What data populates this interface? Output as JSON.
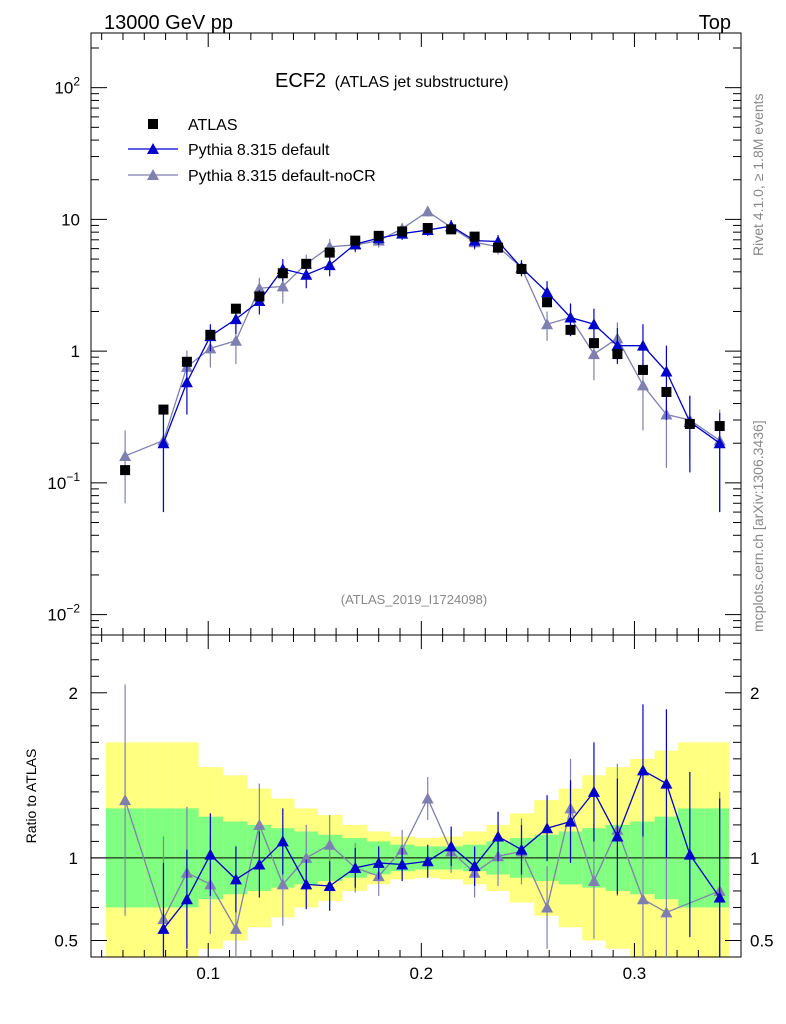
{
  "header": {
    "left": "13000 GeV pp",
    "right": "Top"
  },
  "side_labels": {
    "rivet": "Rivet 4.1.0, ≥ 1.8M events",
    "mcplots": "mcplots.cern.ch [arXiv:1306.3436]"
  },
  "chart_data": {
    "type": "scatter",
    "title": "ECF2",
    "subtitle": "(ATLAS jet substructure)",
    "analysis": "(ATLAS_2019_I1724098)",
    "ylabel_ratio": "Ratio to ATLAS",
    "xlim": [
      0.045,
      0.35
    ],
    "ylim_main": [
      0.007,
      260
    ],
    "ylim_ratio": [
      0.4,
      2.35
    ],
    "x_ticks": [
      {
        "value": 0.1,
        "label": "0.1"
      },
      {
        "value": 0.2,
        "label": "0.2"
      },
      {
        "value": 0.3,
        "label": "0.3"
      }
    ],
    "y_ticks_main": [
      {
        "value": 0.01,
        "base": "10",
        "exp": "−2"
      },
      {
        "value": 0.1,
        "base": "10",
        "exp": "−1"
      },
      {
        "value": 1,
        "base": "1",
        "exp": ""
      },
      {
        "value": 10,
        "base": "10",
        "exp": ""
      },
      {
        "value": 100,
        "base": "10",
        "exp": "2"
      }
    ],
    "y_ticks_ratio": [
      {
        "value": 0.5,
        "label": "0.5"
      },
      {
        "value": 1,
        "label": "1"
      },
      {
        "value": 2,
        "label": "2"
      }
    ],
    "legend": [
      {
        "name": "ATLAS",
        "color": "#000000",
        "marker": "square"
      },
      {
        "name": "Pythia 8.315 default",
        "color": "#0000cc",
        "marker": "triangle"
      },
      {
        "name": "Pythia 8.315 default-noCR",
        "color": "#8080b0",
        "marker": "triangle"
      }
    ],
    "x": [
      0.061,
      0.079,
      0.09,
      0.101,
      0.113,
      0.124,
      0.135,
      0.146,
      0.157,
      0.169,
      0.18,
      0.191,
      0.203,
      0.214,
      0.225,
      0.236,
      0.247,
      0.259,
      0.27,
      0.281,
      0.292,
      0.304,
      0.315,
      0.326,
      0.34
    ],
    "series": [
      {
        "name": "ATLAS",
        "values": [
          0.125,
          0.36,
          0.83,
          1.33,
          2.1,
          2.6,
          3.9,
          4.6,
          5.6,
          6.9,
          7.5,
          8.1,
          8.6,
          8.4,
          7.4,
          6.1,
          4.2,
          2.35,
          1.45,
          1.15,
          0.95,
          0.72,
          0.49,
          0.28,
          0.27
        ],
        "ratio_err": [
          0.3,
          0.3,
          0.3,
          0.25,
          0.22,
          0.2,
          0.18,
          0.16,
          0.14,
          0.12,
          0.1,
          0.08,
          0.07,
          0.07,
          0.08,
          0.1,
          0.12,
          0.14,
          0.16,
          0.18,
          0.2,
          0.22,
          0.25,
          0.3,
          0.3
        ],
        "ratio_err2": [
          0.7,
          0.7,
          0.7,
          0.55,
          0.5,
          0.42,
          0.36,
          0.3,
          0.26,
          0.2,
          0.16,
          0.13,
          0.12,
          0.13,
          0.16,
          0.2,
          0.27,
          0.35,
          0.42,
          0.5,
          0.55,
          0.6,
          0.65,
          0.7,
          0.7
        ]
      },
      {
        "name": "Pythia 8.315 default",
        "values": [
          null,
          0.2,
          0.58,
          1.3,
          1.75,
          2.4,
          4.2,
          3.8,
          4.5,
          6.5,
          7.2,
          7.8,
          8.3,
          8.9,
          6.9,
          6.8,
          4.3,
          2.8,
          1.8,
          1.6,
          1.1,
          1.1,
          0.7,
          0.29,
          0.2
        ],
        "err_lo": [
          null,
          0.14,
          0.25,
          0.3,
          0.4,
          0.5,
          0.8,
          0.8,
          0.8,
          0.8,
          0.8,
          0.8,
          0.8,
          0.8,
          0.9,
          0.8,
          0.6,
          0.6,
          0.5,
          0.5,
          0.3,
          0.4,
          0.4,
          0.17,
          0.14
        ],
        "err_hi": [
          null,
          0.14,
          0.25,
          0.3,
          0.4,
          0.5,
          0.8,
          0.8,
          0.8,
          0.8,
          0.8,
          0.8,
          0.8,
          1.0,
          0.9,
          0.8,
          0.6,
          0.6,
          0.5,
          0.5,
          0.4,
          0.5,
          0.4,
          0.17,
          0.14
        ],
        "ratio": [
          null,
          0.57,
          0.75,
          1.02,
          0.87,
          0.96,
          1.1,
          0.84,
          0.83,
          0.94,
          0.97,
          0.96,
          0.98,
          1.07,
          0.95,
          1.13,
          1.05,
          1.18,
          1.22,
          1.4,
          1.13,
          1.53,
          1.45,
          1.02,
          0.76
        ],
        "ratio_err": [
          null,
          0.4,
          0.3,
          0.25,
          0.2,
          0.2,
          0.2,
          0.15,
          0.15,
          0.12,
          0.1,
          0.1,
          0.1,
          0.12,
          0.12,
          0.15,
          0.15,
          0.2,
          0.25,
          0.3,
          0.35,
          0.4,
          0.45,
          0.5,
          0.6
        ]
      },
      {
        "name": "Pythia 8.315 default-noCR",
        "values": [
          0.16,
          0.21,
          0.76,
          1.05,
          1.2,
          3.0,
          3.1,
          4.6,
          6.2,
          6.4,
          6.9,
          8.5,
          11.5,
          8.7,
          6.7,
          6.2,
          4.3,
          1.6,
          1.8,
          0.95,
          1.25,
          0.55,
          0.33,
          0.3,
          0.21
        ],
        "err_lo": [
          0.09,
          0.15,
          0.25,
          0.3,
          0.4,
          0.6,
          0.8,
          0.8,
          0.9,
          0.8,
          0.8,
          0.9,
          1.0,
          0.9,
          0.8,
          0.8,
          0.6,
          0.4,
          0.5,
          0.35,
          0.4,
          0.3,
          0.2,
          0.15,
          0.15
        ],
        "err_hi": [
          0.09,
          0.15,
          0.25,
          0.3,
          0.4,
          0.6,
          0.8,
          0.8,
          0.9,
          0.8,
          0.8,
          0.9,
          1.0,
          0.9,
          0.8,
          0.8,
          0.6,
          0.4,
          0.5,
          0.35,
          0.4,
          0.3,
          0.2,
          0.15,
          0.15
        ],
        "ratio": [
          1.35,
          0.63,
          0.91,
          0.84,
          0.57,
          1.2,
          0.84,
          1.0,
          1.08,
          0.94,
          0.89,
          1.05,
          1.36,
          1.04,
          0.91,
          1.01,
          1.04,
          0.7,
          1.3,
          0.86,
          1.17,
          0.75,
          0.67,
          null,
          0.8
        ],
        "ratio_err": [
          0.7,
          0.5,
          0.4,
          0.3,
          0.3,
          0.25,
          0.25,
          0.2,
          0.18,
          0.15,
          0.12,
          0.12,
          0.13,
          0.13,
          0.15,
          0.18,
          0.2,
          0.25,
          0.3,
          0.35,
          0.4,
          0.45,
          0.5,
          null,
          0.6
        ]
      }
    ]
  }
}
